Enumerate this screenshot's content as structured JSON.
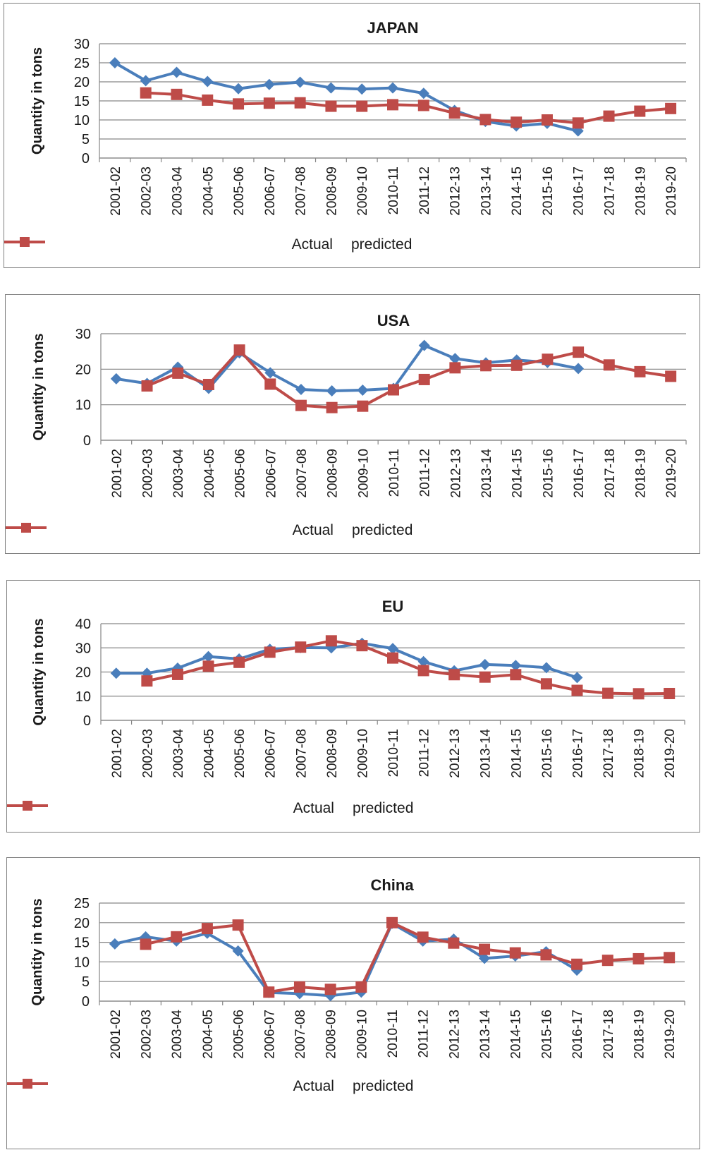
{
  "chart_data": [
    {
      "type": "line",
      "title": "JAPAN",
      "ylabel": "Quantity in tons",
      "xlabel": "",
      "ylim": [
        0,
        30
      ],
      "yticks": [
        "0",
        "5",
        "10",
        "15",
        "20",
        "25",
        "30"
      ],
      "grid": "horizontal",
      "legend": "bottom",
      "categories": [
        "2001-02",
        "2002-03",
        "2003-04",
        "2004-05",
        "2005-06",
        "2006-07",
        "2007-08",
        "2008-09",
        "2009-10",
        "2010-11",
        "2011-12",
        "2012-13",
        "2013-14",
        "2014-15",
        "2015-16",
        "2016-17",
        "2017-18",
        "2018-19",
        "2019-20"
      ],
      "series": [
        {
          "name": "Actual",
          "color": "#4a7ebb",
          "marker": "diamond",
          "values": [
            25,
            20.3,
            22.5,
            20.1,
            18.2,
            19.3,
            19.9,
            18.4,
            18.1,
            18.4,
            17,
            12.5,
            9.6,
            8.4,
            9.1,
            7.1,
            null,
            null,
            null
          ]
        },
        {
          "name": "predicted",
          "color": "#be4b48",
          "marker": "square",
          "values": [
            null,
            17.1,
            16.7,
            15.2,
            14.2,
            14.4,
            14.5,
            13.6,
            13.6,
            14,
            13.8,
            11.8,
            10.1,
            9.4,
            10,
            9.2,
            11,
            12.3,
            13
          ]
        }
      ]
    },
    {
      "type": "line",
      "title": "USA",
      "ylabel": "Quantity in tons",
      "xlabel": "",
      "ylim": [
        0,
        30
      ],
      "yticks": [
        "0",
        "10",
        "20",
        "30"
      ],
      "grid": "horizontal",
      "legend": "bottom",
      "categories": [
        "2001-02",
        "2002-03",
        "2003-04",
        "2004-05",
        "2005-06",
        "2006-07",
        "2007-08",
        "2008-09",
        "2009-10",
        "2010-11",
        "2011-12",
        "2012-13",
        "2013-14",
        "2014-15",
        "2015-16",
        "2016-17",
        "2017-18",
        "2018-19",
        "2019-20"
      ],
      "series": [
        {
          "name": "Actual",
          "color": "#4a7ebb",
          "marker": "diamond",
          "values": [
            17.3,
            16,
            20.6,
            14.6,
            24.6,
            19,
            14.3,
            13.9,
            14.1,
            14.6,
            26.7,
            23,
            21.8,
            22.6,
            21.9,
            20.2,
            null,
            null,
            null
          ]
        },
        {
          "name": "predicted",
          "color": "#be4b48",
          "marker": "square",
          "values": [
            null,
            15.3,
            18.9,
            15.7,
            25.4,
            15.8,
            9.8,
            9.2,
            9.6,
            14.2,
            17.1,
            20.4,
            21,
            21.1,
            22.8,
            24.8,
            21.2,
            19.3,
            18
          ]
        }
      ]
    },
    {
      "type": "line",
      "title": "EU",
      "ylabel": "Quantity in tons",
      "xlabel": "",
      "ylim": [
        0,
        40
      ],
      "yticks": [
        "0",
        "10",
        "20",
        "30",
        "40"
      ],
      "grid": "horizontal",
      "legend": "bottom",
      "categories": [
        "2001-02",
        "2002-03",
        "2003-04",
        "2004-05",
        "2005-06",
        "2006-07",
        "2007-08",
        "2008-09",
        "2009-10",
        "2010-11",
        "2011-12",
        "2012-13",
        "2013-14",
        "2014-15",
        "2015-16",
        "2016-17",
        "2017-18",
        "2018-19",
        "2019-20"
      ],
      "series": [
        {
          "name": "Actual",
          "color": "#4a7ebb",
          "marker": "diamond",
          "values": [
            19.5,
            19.5,
            21.6,
            26.4,
            25.4,
            29.4,
            30.1,
            30,
            31.9,
            29.7,
            24.3,
            20.5,
            23.1,
            22.7,
            21.8,
            17.7,
            null,
            null,
            null
          ]
        },
        {
          "name": "predicted",
          "color": "#be4b48",
          "marker": "square",
          "values": [
            null,
            16.3,
            19,
            22.4,
            24,
            28.2,
            30.3,
            32.9,
            30.9,
            25.8,
            20.6,
            18.9,
            17.9,
            18.9,
            15.1,
            12.4,
            11.2,
            11,
            11.1
          ]
        }
      ]
    },
    {
      "type": "line",
      "title": "China",
      "ylabel": "Quantity in tons",
      "xlabel": "",
      "ylim": [
        0,
        25
      ],
      "yticks": [
        "0",
        "5",
        "10",
        "15",
        "20",
        "25"
      ],
      "grid": "horizontal",
      "legend": "bottom",
      "categories": [
        "2001-02",
        "2002-03",
        "2003-04",
        "2004-05",
        "2005-06",
        "2006-07",
        "2007-08",
        "2008-09",
        "2009-10",
        "2010-11",
        "2011-12",
        "2012-13",
        "2013-14",
        "2014-15",
        "2015-16",
        "2016-17",
        "2017-18",
        "2018-19",
        "2019-20"
      ],
      "series": [
        {
          "name": "Actual",
          "color": "#4a7ebb",
          "marker": "diamond",
          "values": [
            14.6,
            16.4,
            15.3,
            17.3,
            12.8,
            2.2,
            1.9,
            1.4,
            2.3,
            19.8,
            15.3,
            15.8,
            10.9,
            11.5,
            12.6,
            7.9,
            null,
            null,
            null
          ]
        },
        {
          "name": "predicted",
          "color": "#be4b48",
          "marker": "square",
          "values": [
            null,
            14.5,
            16.4,
            18.5,
            19.4,
            2.3,
            3.6,
            3,
            3.6,
            20,
            16.3,
            14.8,
            13.2,
            12.3,
            11.8,
            9.4,
            10.4,
            10.8,
            11.1
          ]
        }
      ]
    }
  ]
}
